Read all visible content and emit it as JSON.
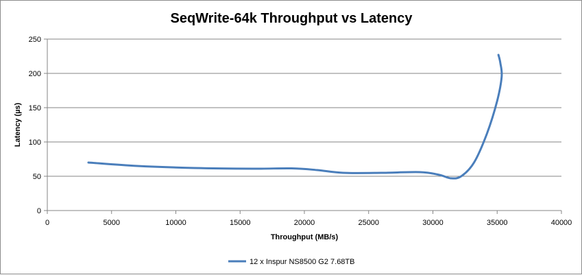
{
  "chart_data": {
    "type": "line",
    "title": "SeqWrite-64k Throughput vs Latency",
    "xlabel": "Throughput (MB/s)",
    "ylabel": "Latency (µs)",
    "xlim": [
      0,
      40000
    ],
    "ylim": [
      0,
      250
    ],
    "x_ticks": [
      0,
      5000,
      10000,
      15000,
      20000,
      25000,
      30000,
      35000,
      40000
    ],
    "y_ticks": [
      0,
      50,
      100,
      150,
      200,
      250
    ],
    "grid": "horizontal",
    "legend_position": "bottom",
    "series": [
      {
        "name": "12 x Inspur NS8500 G2 7.68TB",
        "color": "#4a7ebb",
        "points": [
          [
            3200,
            70
          ],
          [
            7000,
            65
          ],
          [
            11500,
            62
          ],
          [
            16000,
            61
          ],
          [
            19000,
            61.5
          ],
          [
            21000,
            59
          ],
          [
            23000,
            55
          ],
          [
            26000,
            55
          ],
          [
            29000,
            56
          ],
          [
            30500,
            52
          ],
          [
            31400,
            47
          ],
          [
            32200,
            50
          ],
          [
            33200,
            70
          ],
          [
            34200,
            112
          ],
          [
            35000,
            160
          ],
          [
            35350,
            195
          ],
          [
            35250,
            215
          ],
          [
            35100,
            227
          ]
        ]
      }
    ]
  }
}
